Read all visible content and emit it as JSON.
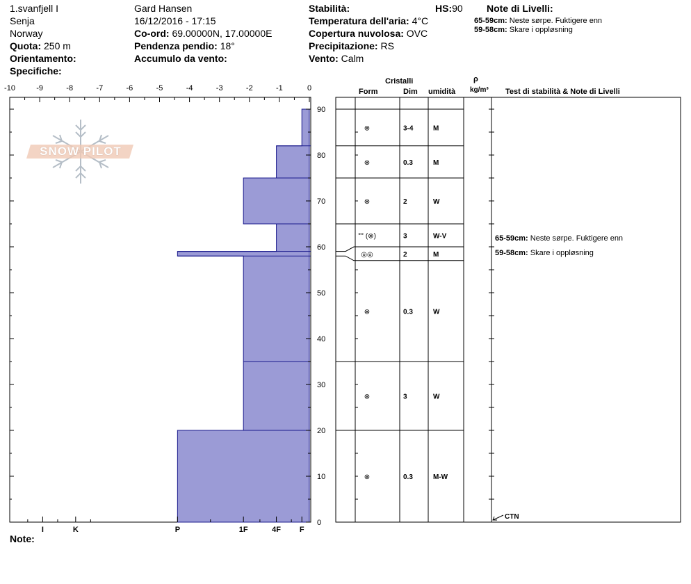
{
  "header": {
    "site": "1.svanfjell I",
    "region": "Senja",
    "country": "Norway",
    "elevation_label": "Quota:",
    "elevation_value": "250 m",
    "aspect_label": "Orientamento:",
    "specifics_label": "Specifiche:",
    "observer": "Gard Hansen",
    "datetime": "16/12/2016 - 17:15",
    "coord_label": "Co-ord:",
    "coord_value": "69.00000N, 17.00000E",
    "slope_label": "Pendenza pendio:",
    "slope_value": "18°",
    "wind_loading_label": "Accumulo da vento:",
    "stability_label": "Stabilità:",
    "hs_label": "HS:",
    "hs_value": "90",
    "air_temp_label": "Temperatura dell'aria:",
    "air_temp_value": "4°C",
    "cloud_label": "Copertura nuvolosa:",
    "cloud_value": "OVC",
    "precip_label": "Precipitazione:",
    "precip_value": "RS",
    "wind_label": "Vento:",
    "wind_value": "Calm",
    "layer_notes_title": "Note di Livelli:",
    "layer_notes": [
      {
        "range": "65-59cm:",
        "text": "Neste sørpe. Fuktigere enn"
      },
      {
        "range": "59-58cm:",
        "text": "Skare i oppløsning"
      }
    ]
  },
  "logo": {
    "text": "SNOW PILOT"
  },
  "table_headers": {
    "crystals": "Cristalli",
    "form": "Form",
    "dim": "Dim",
    "humidity": "umidità",
    "rho": "ρ",
    "rho_unit": "kg/m³",
    "tests_notes": "Test di stabilità & Note di Livelli"
  },
  "footer": {
    "note_label": "Note:"
  },
  "ctn_label": "CTN",
  "chart_data": {
    "type": "area",
    "title": "",
    "xlabel": "",
    "ylabel": "",
    "x_ticks": [
      "-10",
      "-9",
      "-8",
      "-7",
      "-6",
      "-5",
      "-4",
      "-3",
      "-2",
      "-1",
      "0"
    ],
    "xlim": [
      -10,
      0
    ],
    "ylim": [
      0,
      90
    ],
    "y_ticks": [
      "0",
      "10",
      "20",
      "30",
      "40",
      "50",
      "60",
      "70",
      "80",
      "90"
    ],
    "hardness_ticks": [
      {
        "label": "I",
        "value": -8.9
      },
      {
        "label": "K",
        "value": -7.8
      },
      {
        "label": "P",
        "value": -4.4
      },
      {
        "label": "1F",
        "value": -2.2
      },
      {
        "label": "4F",
        "value": -1.1
      },
      {
        "label": "F",
        "value": -0.25
      }
    ],
    "hardness_profile": [
      {
        "top": 90,
        "bottom": 82,
        "hardness": -0.25
      },
      {
        "top": 82,
        "bottom": 75,
        "hardness": -1.1
      },
      {
        "top": 75,
        "bottom": 65,
        "hardness": -2.2
      },
      {
        "top": 65,
        "bottom": 59,
        "hardness": -1.1
      },
      {
        "top": 59,
        "bottom": 58,
        "hardness": -4.4
      },
      {
        "top": 58,
        "bottom": 35,
        "hardness": -2.2
      },
      {
        "top": 35,
        "bottom": 20,
        "hardness": -2.2
      },
      {
        "top": 20,
        "bottom": 0,
        "hardness": -4.4
      }
    ],
    "layers": [
      {
        "top": 90,
        "bottom": 82,
        "form": "⊗",
        "dim": "3-4",
        "humidity": "M"
      },
      {
        "top": 82,
        "bottom": 75,
        "form": "⊗",
        "dim": "0.3",
        "humidity": "M"
      },
      {
        "top": 75,
        "bottom": 65,
        "form": "⊗",
        "dim": "2",
        "humidity": "W"
      },
      {
        "top": 65,
        "bottom": 60,
        "form": "°° (⊗)",
        "dim": "3",
        "humidity": "W-V"
      },
      {
        "top": 60,
        "bottom": 57,
        "form": "◎◎",
        "dim": "2",
        "humidity": "M"
      },
      {
        "top": 57,
        "bottom": 35,
        "form": "⊗",
        "dim": "0.3",
        "humidity": "W"
      },
      {
        "top": 35,
        "bottom": 20,
        "form": "⊗",
        "dim": "3",
        "humidity": "W"
      },
      {
        "top": 20,
        "bottom": 0,
        "form": "⊗",
        "dim": "0.3",
        "humidity": "M-W"
      }
    ],
    "colors": {
      "profile_fill": "#9b9bd6",
      "profile_stroke": "#1a1a8c"
    }
  }
}
